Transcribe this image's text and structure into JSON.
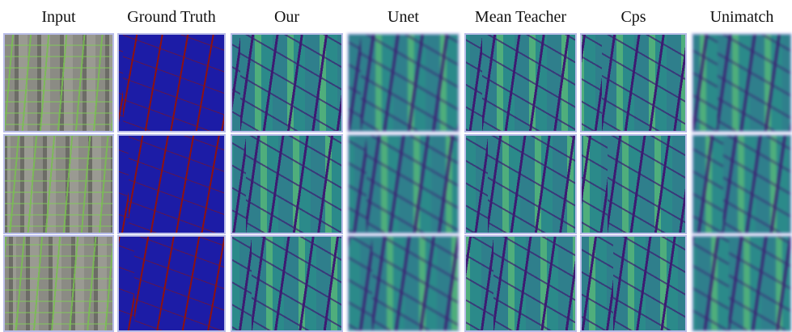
{
  "header": {
    "columns": [
      "Input",
      "Ground Truth",
      "Our",
      "Unet",
      "Mean Teacher",
      "Cps",
      "Unimatch"
    ]
  }
}
